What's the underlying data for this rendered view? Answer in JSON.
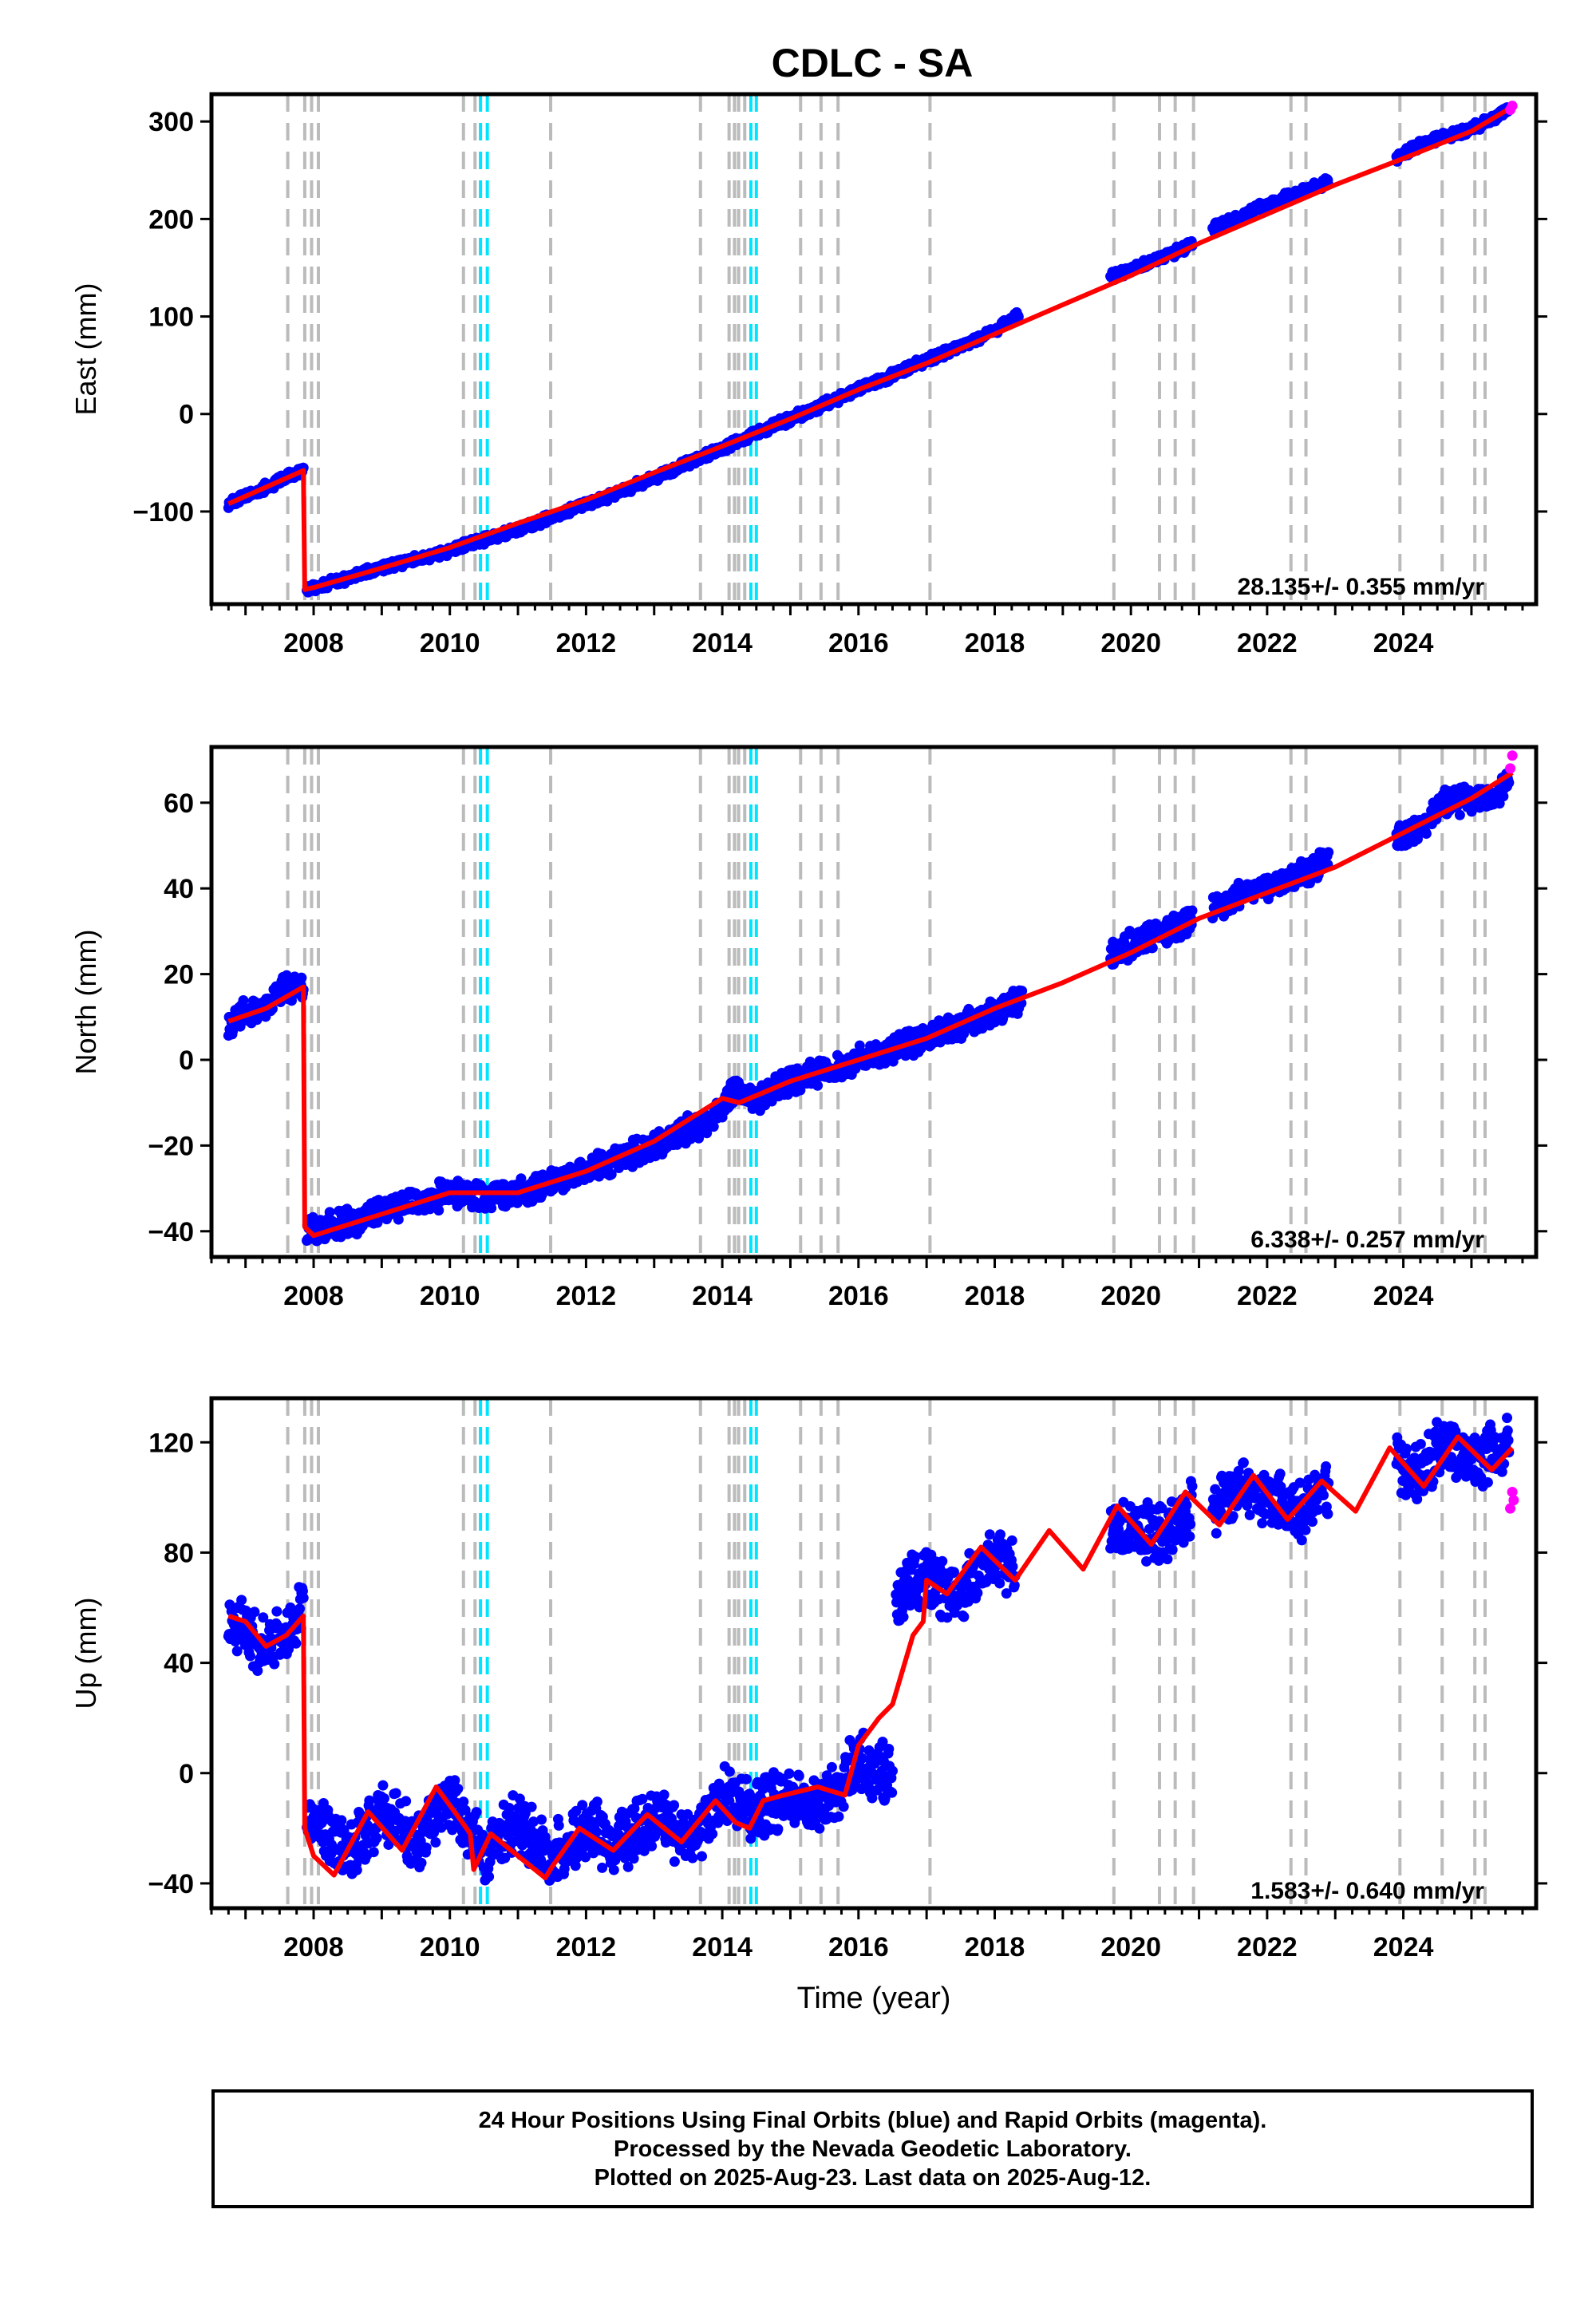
{
  "title": "CDLC - SA",
  "chart_data": [
    {
      "type": "scatter",
      "panel": "east",
      "ylabel": "East (mm)",
      "xlim": [
        2006.5,
        2025.95
      ],
      "ylim": [
        -195,
        328
      ],
      "yticks": [
        -100,
        0,
        100,
        200,
        300
      ],
      "xticks": [
        2008,
        2010,
        2012,
        2014,
        2016,
        2018,
        2020,
        2022,
        2024
      ],
      "rate_text": "28.135+/- 0.355 mm/yr",
      "segments": [
        {
          "x": [
            2006.75,
            2007.0,
            2007.3,
            2007.6,
            2007.85
          ],
          "y": [
            -92,
            -85,
            -75,
            -65,
            -58
          ]
        },
        {
          "x": [
            2007.9,
            2008.5,
            2009.0,
            2010.0,
            2011.0,
            2012.0,
            2013.0,
            2014.0,
            2015.0,
            2016.0,
            2017.0,
            2018.0,
            2018.35
          ],
          "y": [
            -180,
            -168,
            -158,
            -140,
            -118,
            -93,
            -66,
            -35,
            -5,
            25,
            55,
            85,
            102
          ]
        },
        {
          "x": [
            2019.7,
            2020.0,
            2020.5,
            2020.9
          ],
          "y": [
            140,
            148,
            162,
            174
          ]
        },
        {
          "x": [
            2021.2,
            2021.7,
            2022.0,
            2022.5,
            2022.9
          ],
          "y": [
            190,
            205,
            215,
            228,
            238
          ]
        },
        {
          "x": [
            2023.9,
            2024.2,
            2024.6,
            2025.0,
            2025.4,
            2025.55
          ],
          "y": [
            262,
            275,
            285,
            292,
            306,
            312
          ]
        }
      ],
      "trend_x": [
        2006.75,
        2007.85,
        2007.87,
        2008.0,
        2009.0,
        2010.0,
        2011.0,
        2012.0,
        2013.0,
        2014.0,
        2015.0,
        2016.0,
        2017.0,
        2018.0,
        2019.0,
        2020.0,
        2021.0,
        2022.0,
        2023.0,
        2024.0,
        2025.0,
        2025.6
      ],
      "trend_y": [
        -92,
        -58,
        -180,
        -178,
        -158,
        -137,
        -112,
        -88,
        -60,
        -33,
        -5,
        25,
        52,
        82,
        112,
        142,
        175,
        205,
        235,
        262,
        290,
        315
      ],
      "rapid_points": [
        [
          2025.57,
          312
        ],
        [
          2025.6,
          316
        ]
      ]
    },
    {
      "type": "scatter",
      "panel": "north",
      "ylabel": "North (mm)",
      "xlim": [
        2006.5,
        2025.95
      ],
      "ylim": [
        -46,
        73
      ],
      "yticks": [
        -40,
        -20,
        0,
        20,
        40,
        60
      ],
      "xticks": [
        2008,
        2010,
        2012,
        2014,
        2016,
        2018,
        2020,
        2022,
        2024
      ],
      "rate_text": "6.338+/- 0.257 mm/yr",
      "segments": [
        {
          "x": [
            2006.75,
            2007.0,
            2007.3,
            2007.55,
            2007.85
          ],
          "y": [
            9,
            11,
            12,
            17,
            17
          ]
        },
        {
          "x": [
            2007.9,
            2008.5,
            2009.0,
            2010.0,
            2010.5,
            2011.0,
            2012.0,
            2013.0,
            2013.8,
            2014.2,
            2014.4,
            2015.0,
            2016.0,
            2017.0,
            2018.0,
            2018.4
          ],
          "y": [
            -40,
            -38,
            -35,
            -31,
            -32,
            -31,
            -26,
            -20,
            -14,
            -7,
            -10,
            -5,
            0,
            5,
            11,
            14
          ]
        },
        {
          "x": [
            2019.7,
            2020.0,
            2020.5,
            2020.9
          ],
          "y": [
            24,
            27,
            30,
            33
          ]
        },
        {
          "x": [
            2021.2,
            2021.7,
            2022.0,
            2022.5,
            2022.9
          ],
          "y": [
            36,
            39,
            40,
            43,
            47
          ]
        },
        {
          "x": [
            2023.9,
            2024.2,
            2024.6,
            2025.0,
            2025.4,
            2025.55
          ],
          "y": [
            52,
            53,
            60,
            61,
            62,
            66
          ]
        }
      ],
      "trend_x": [
        2006.75,
        2007.3,
        2007.85,
        2007.87,
        2008.0,
        2009.0,
        2010.0,
        2011.0,
        2012.0,
        2013.0,
        2014.0,
        2014.25,
        2015.0,
        2016.0,
        2017.0,
        2018.0,
        2019.0,
        2020.0,
        2021.0,
        2022.0,
        2023.0,
        2024.0,
        2025.0,
        2025.6
      ],
      "trend_y": [
        9,
        12,
        17,
        -39,
        -41,
        -36,
        -31,
        -31,
        -26,
        -19,
        -9,
        -10,
        -5,
        0,
        5,
        12,
        18,
        25,
        33,
        39,
        45,
        53,
        61,
        67
      ],
      "rapid_points": [
        [
          2025.57,
          68
        ],
        [
          2025.6,
          71
        ]
      ]
    },
    {
      "type": "scatter",
      "panel": "up",
      "ylabel": "Up (mm)",
      "xlabel": "Time (year)",
      "xlim": [
        2006.5,
        2025.95
      ],
      "ylim": [
        -49,
        136
      ],
      "yticks": [
        -40,
        0,
        40,
        80,
        120
      ],
      "xticks": [
        2008,
        2010,
        2012,
        2014,
        2016,
        2018,
        2020,
        2022,
        2024
      ],
      "rate_text": "1.583+/- 0.640 mm/yr",
      "segments": [
        {
          "x": [
            2006.75,
            2007.0,
            2007.3,
            2007.6,
            2007.85
          ],
          "y": [
            55,
            52,
            44,
            50,
            58
          ]
        },
        {
          "x": [
            2007.9,
            2008.5,
            2009.0,
            2009.6,
            2010.0,
            2010.5,
            2011.0,
            2011.5,
            2012.0,
            2012.5,
            2013.0,
            2013.5,
            2014.0,
            2014.5,
            2015.0,
            2015.5,
            2016.0,
            2016.5
          ],
          "y": [
            -15,
            -30,
            -15,
            -25,
            -8,
            -30,
            -18,
            -30,
            -20,
            -25,
            -15,
            -25,
            -8,
            -15,
            -8,
            -10,
            5,
            -2
          ]
        },
        {
          "x": [
            2016.55,
            2017.0,
            2017.5,
            2018.0,
            2018.3
          ],
          "y": [
            65,
            70,
            65,
            78,
            72
          ]
        },
        {
          "x": [
            2019.7,
            2020.0,
            2020.5,
            2020.9
          ],
          "y": [
            90,
            88,
            85,
            98
          ]
        },
        {
          "x": [
            2021.2,
            2021.7,
            2022.0,
            2022.5,
            2022.9
          ],
          "y": [
            95,
            105,
            100,
            95,
            102
          ]
        },
        {
          "x": [
            2023.9,
            2024.2,
            2024.6,
            2025.0,
            2025.4,
            2025.55
          ],
          "y": [
            112,
            108,
            120,
            115,
            116,
            118
          ]
        }
      ],
      "trend_x": [
        2006.75,
        2007.0,
        2007.3,
        2007.6,
        2007.85,
        2007.87,
        2008.0,
        2008.3,
        2008.8,
        2009.3,
        2009.8,
        2010.1,
        2010.3,
        2010.35,
        2010.6,
        2010.9,
        2011.4,
        2011.5,
        2011.9,
        2012.4,
        2012.9,
        2013.4,
        2013.9,
        2014.2,
        2014.4,
        2014.6,
        2014.9,
        2015.4,
        2015.8,
        2016.0,
        2016.3,
        2016.5,
        2016.8,
        2016.95,
        2017.0,
        2017.3,
        2017.8,
        2018.3,
        2018.8,
        2019.3,
        2019.8,
        2020.3,
        2020.8,
        2021.3,
        2021.8,
        2022.3,
        2022.8,
        2023.3,
        2023.8,
        2024.3,
        2024.8,
        2025.3,
        2025.6
      ],
      "trend_y": [
        57,
        55,
        46,
        50,
        57,
        -20,
        -30,
        -37,
        -14,
        -28,
        -5,
        -15,
        -22,
        -35,
        -22,
        -28,
        -38,
        -34,
        -20,
        -28,
        -15,
        -25,
        -10,
        -18,
        -20,
        -10,
        -8,
        -5,
        -8,
        10,
        20,
        25,
        50,
        55,
        70,
        65,
        82,
        70,
        88,
        74,
        97,
        83,
        102,
        90,
        108,
        92,
        106,
        95,
        118,
        104,
        122,
        110,
        118
      ],
      "rapid_points": [
        [
          2025.57,
          96
        ],
        [
          2025.6,
          102
        ],
        [
          2025.62,
          99
        ]
      ]
    }
  ],
  "offset_lines": {
    "gray": [
      2007.62,
      2007.87,
      2007.97,
      2008.07,
      2010.2,
      2010.37,
      2011.48,
      2013.68,
      2014.1,
      2014.18,
      2014.24,
      2014.33,
      2015.15,
      2015.45,
      2015.7,
      2017.05,
      2019.75,
      2020.42,
      2020.65,
      2020.92,
      2022.35,
      2022.57,
      2023.95,
      2024.57,
      2025.05,
      2025.2
    ],
    "cyan": [
      2010.45,
      2010.55,
      2014.42,
      2014.5
    ]
  },
  "colors": {
    "final": "#0000ff",
    "rapid": "#ff00ff",
    "model": "#ff0000",
    "offset_gray": "#bbbbbb",
    "offset_cyan": "#00e5ff"
  },
  "footer": {
    "line1": "24 Hour Positions Using Final Orbits (blue) and Rapid Orbits (magenta).",
    "line2": "Processed by the Nevada Geodetic Laboratory.",
    "line3": "Plotted on 2025-Aug-23. Last data on 2025-Aug-12."
  }
}
